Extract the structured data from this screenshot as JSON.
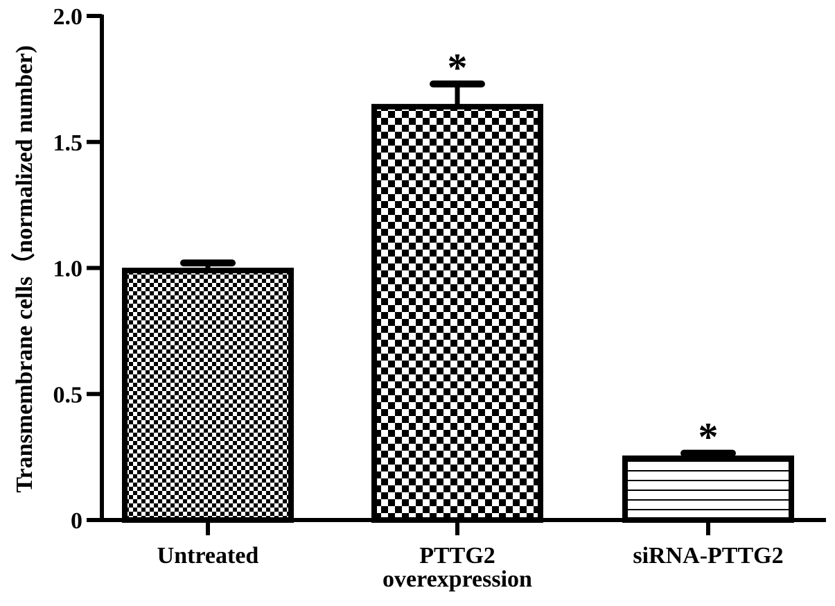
{
  "chart_data": {
    "type": "bar",
    "title": "",
    "xlabel": "",
    "ylabel": "Transmembrane cells（normalized number)",
    "ylim": [
      0,
      2.0
    ],
    "yticks": [
      0,
      0.5,
      1.0,
      1.5,
      2.0
    ],
    "ytick_labels": [
      "0",
      "0.5",
      "1.0",
      "1.5",
      "2.0"
    ],
    "grid": false,
    "legend": "none",
    "categories": [
      [
        "Untreated"
      ],
      [
        "PTTG2",
        "overexpression"
      ],
      [
        "siRNA-PTTG2"
      ]
    ],
    "values": [
      0.99,
      1.64,
      0.245
    ],
    "errors": [
      0.03,
      0.09,
      0.02
    ],
    "significance": [
      "",
      "*",
      "*"
    ],
    "patterns": [
      "fine-checker",
      "coarse-checker",
      "horizontal-lines"
    ],
    "colors": {
      "ink": "#000000",
      "background": "#ffffff"
    }
  }
}
